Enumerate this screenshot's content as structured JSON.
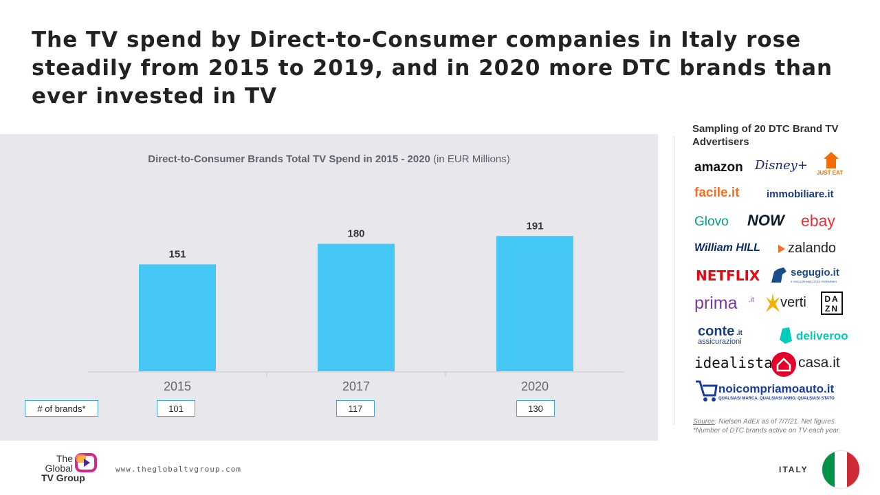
{
  "headline": "The TV spend by Direct-to-Consumer companies in Italy rose steadily from 2015 to 2019, and in 2020 more DTC brands than ever invested in TV",
  "chart_data": {
    "type": "bar",
    "title": "Direct-to-Consumer Brands Total TV Spend in 2015 - 2020",
    "subtitle": "(in EUR Millions)",
    "categories": [
      "2015",
      "2017",
      "2020"
    ],
    "values": [
      151,
      180,
      191
    ],
    "ylim": [
      0,
      200
    ],
    "grid": false,
    "bar_color": "#45c8f5",
    "brands_label": "# of brands*",
    "brands_counts": [
      "101",
      "117",
      "130"
    ]
  },
  "sidebar": {
    "title": "Sampling of 20 DTC Brand TV Advertisers",
    "logos": [
      {
        "name": "amazon-logo",
        "text": "amazon",
        "color": "#111111"
      },
      {
        "name": "disney-plus-logo",
        "text": "Disney+",
        "color": "#1a2a6c"
      },
      {
        "name": "just-eat-logo",
        "text": "JUST EAT",
        "color": "#f36d00"
      },
      {
        "name": "facile-logo",
        "text": "facile.it",
        "color": "#f36f21"
      },
      {
        "name": "immobiliare-logo",
        "text": "immobiliare.it",
        "color": "#1a3c7a"
      },
      {
        "name": "glovo-logo",
        "text": "Glovo",
        "color": "#00a082"
      },
      {
        "name": "now-logo",
        "text": "NOW",
        "color": "#0b1b2b"
      },
      {
        "name": "ebay-logo",
        "text": "ebay",
        "color": "#e53238"
      },
      {
        "name": "william-hill-logo",
        "text": "William HILL",
        "color": "#0a2a5c"
      },
      {
        "name": "zalando-logo",
        "text": "zalando",
        "color": "#222222"
      },
      {
        "name": "netflix-logo",
        "text": "NETFLIX",
        "color": "#e50914"
      },
      {
        "name": "segugio-logo",
        "text": "segugio.it",
        "color": "#1a4c8c"
      },
      {
        "name": "segugio-tagline",
        "text": "IL MIGLIOR AMICO DEL RISPARMIO",
        "color": "#1a4c8c"
      },
      {
        "name": "prima-logo",
        "text": "prima",
        "color": "#7a3ba0"
      },
      {
        "name": "prima-it-suffix",
        "text": ".it",
        "color": "#7a3ba0"
      },
      {
        "name": "verti-logo",
        "text": "verti",
        "color": "#222222"
      },
      {
        "name": "dazn-logo",
        "text": "DA ZN",
        "color": "#111111"
      },
      {
        "name": "conte-logo",
        "text": "conte",
        "color": "#1a3c7a"
      },
      {
        "name": "conte-it-suffix",
        "text": ".it",
        "color": "#1a3c7a"
      },
      {
        "name": "conte-subtitle",
        "text": "assicurazioni",
        "color": "#1a3c7a"
      },
      {
        "name": "deliveroo-logo",
        "text": "deliveroo",
        "color": "#00ccbc"
      },
      {
        "name": "idealista-logo",
        "text": "idealista",
        "color": "#111111"
      },
      {
        "name": "casa-logo",
        "text": "casa.it",
        "color": "#222222"
      },
      {
        "name": "noicompriamoauto-logo",
        "text": "noicompriamoauto.it",
        "color": "#1a3c9c"
      },
      {
        "name": "noicompriamoauto-tagline",
        "text": "QUALSIASI MARCA. QUALSIASI ANNO. QUALSIASI STATO",
        "color": "#1a3c9c"
      }
    ]
  },
  "source": {
    "label": "Source",
    "text": ": Nielsen AdEx as of 7/7/21. Net figures.",
    "note": "*Number of DTC brands active on TV each year."
  },
  "footer": {
    "logo_line1": "The",
    "logo_line2": "Global",
    "logo_line3": "TV Group",
    "website": "www.theglobaltvgroup.com",
    "country": "ITALY"
  }
}
